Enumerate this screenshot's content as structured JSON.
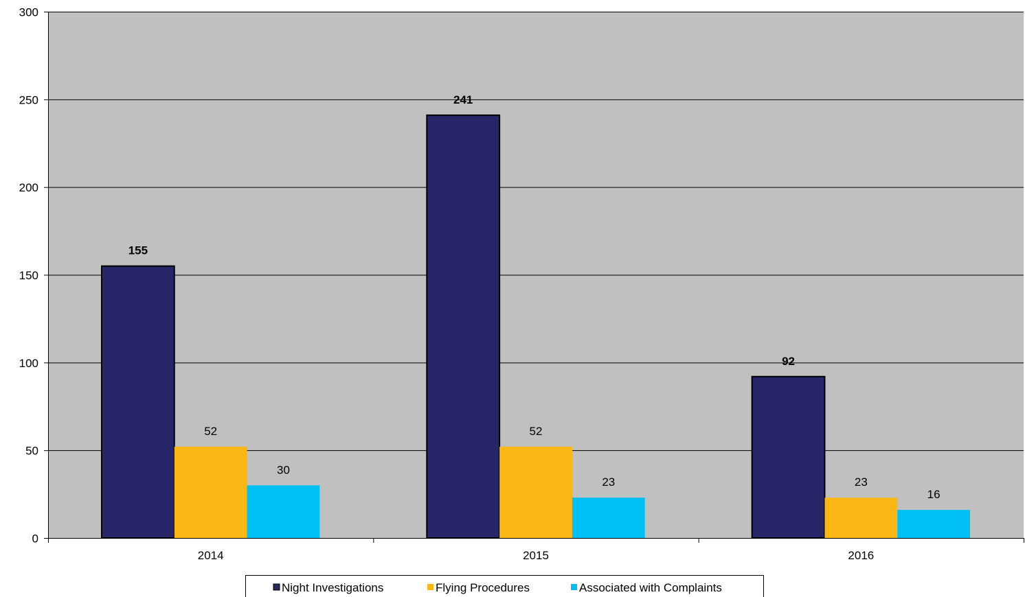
{
  "chart_data": {
    "type": "bar",
    "categories": [
      "2014",
      "2015",
      "2016"
    ],
    "series": [
      {
        "name": "Night Investigations",
        "values": [
          155,
          241,
          92
        ],
        "color": "#262669",
        "label_style": "bold",
        "outlined": true
      },
      {
        "name": "Flying Procedures",
        "values": [
          52,
          52,
          23
        ],
        "color": "#FBB714"
      },
      {
        "name": "Associated with Complaints",
        "values": [
          30,
          23,
          16
        ],
        "color": "#00BFF2"
      }
    ],
    "ylim": [
      0,
      300
    ],
    "yticks": [
      0,
      50,
      100,
      150,
      200,
      250,
      300
    ],
    "ytick_labels": [
      "0",
      "50",
      "100",
      "150",
      "200",
      "250",
      "300"
    ],
    "plot_background": "#C0C0C0",
    "grid": true,
    "legend": "bottom-center"
  }
}
